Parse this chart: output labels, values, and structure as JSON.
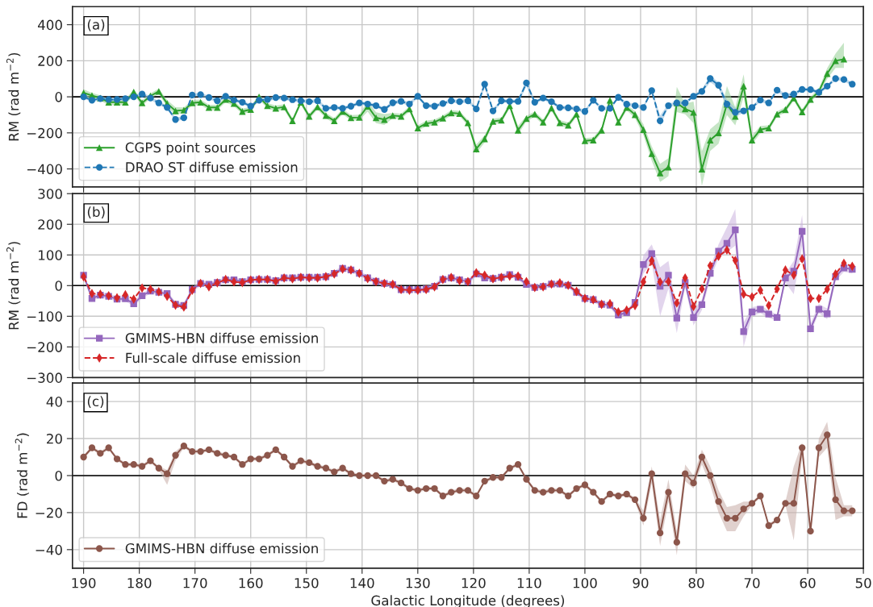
{
  "chart_data": [
    {
      "type": "line",
      "ylabel": "RM (rad m$^{−2}$)",
      "annotations": [
        "(a)"
      ],
      "legend": "lower left",
      "grid": true,
      "tick_labels": "y",
      "xlim": [
        192,
        50
      ],
      "xticks": [
        190,
        180,
        170,
        160,
        150,
        140,
        130,
        120,
        110,
        100,
        90,
        80,
        70,
        60,
        50
      ],
      "ylim": [
        -500,
        500
      ],
      "yticks": [
        {
          "value": -400,
          "label": "−400"
        },
        {
          "value": -200,
          "label": "−200"
        },
        0,
        200,
        400
      ],
      "ref_lines": [
        {
          "axis": "y",
          "value": 0,
          "color": "#000000"
        }
      ],
      "x": [
        190,
        188.5,
        187,
        185.5,
        184,
        182.5,
        181,
        179.5,
        178,
        176.5,
        175,
        173.5,
        172,
        170.5,
        169,
        167.5,
        166,
        164.5,
        163,
        161.5,
        160,
        158.5,
        157,
        155.5,
        154,
        152.5,
        151,
        149.5,
        148,
        146.5,
        145,
        143.5,
        142,
        140.5,
        139,
        137.5,
        136,
        134.5,
        133,
        131.5,
        130,
        128.5,
        127,
        125.5,
        124,
        122.5,
        121,
        119.5,
        118,
        116.5,
        115,
        113.5,
        112,
        110.5,
        109,
        107.5,
        106,
        104.5,
        103,
        101.5,
        100,
        98.5,
        97,
        95.5,
        94,
        92.5,
        91,
        89.5,
        88,
        86.5,
        85,
        83.5,
        82,
        80.5,
        79,
        77.5,
        76,
        74.5,
        73,
        71.5,
        70,
        68.5,
        67,
        65.5,
        64,
        62.5,
        61,
        59.5,
        58,
        56.5,
        55,
        53.5,
        52
      ],
      "series": [
        {
          "name": "CGPS point sources",
          "color": "#2ca02c",
          "marker": "triangle",
          "line_style": "solid",
          "values": [
            22,
            7,
            -7,
            -30,
            -30,
            -30,
            27,
            -34,
            5,
            30,
            -37,
            -78,
            -74,
            -34,
            -30,
            -59,
            -59,
            -15,
            -37,
            -81,
            -70,
            0,
            -49,
            -64,
            -56,
            -133,
            -30,
            -108,
            -56,
            -104,
            -133,
            -81,
            -116,
            -114,
            -52,
            -116,
            -126,
            -104,
            -108,
            -67,
            -173,
            -148,
            -141,
            -118,
            -89,
            -93,
            -144,
            -289,
            -233,
            -136,
            -130,
            -49,
            -185,
            -121,
            -96,
            -141,
            -62,
            -144,
            -158,
            -96,
            -244,
            -240,
            -185,
            -19,
            -141,
            -59,
            -99,
            -182,
            -315,
            -422,
            -390,
            -34,
            -67,
            -86,
            -401,
            -240,
            -200,
            -41,
            -108,
            59,
            -240,
            -182,
            -173,
            -96,
            -71,
            -7,
            -84,
            -15,
            30,
            129,
            200,
            209,
            null
          ],
          "lower": [
            -2,
            -8,
            -22,
            -45,
            -45,
            -45,
            12,
            -49,
            -10,
            15,
            -57,
            -98,
            -89,
            -49,
            -45,
            -74,
            -74,
            -30,
            -52,
            -96,
            -85,
            -15,
            -64,
            -79,
            -71,
            -148,
            -45,
            -123,
            -71,
            -119,
            -148,
            -96,
            -131,
            -129,
            -82,
            -146,
            -156,
            -119,
            -123,
            -82,
            -188,
            -163,
            -156,
            -133,
            -104,
            -108,
            -159,
            -314,
            -253,
            -151,
            -145,
            -64,
            -210,
            -136,
            -111,
            -156,
            -77,
            -159,
            -173,
            -111,
            -259,
            -255,
            -200,
            -34,
            -156,
            -74,
            -119,
            -212,
            -355,
            -472,
            -440,
            -84,
            -97,
            -146,
            -495,
            -300,
            -260,
            -101,
            -158,
            -1,
            -265,
            -202,
            -188,
            -111,
            -86,
            -22,
            -99,
            -30,
            15,
            99,
            160,
            160,
            null
          ],
          "upper": [
            42,
            22,
            8,
            -15,
            -15,
            -15,
            42,
            -19,
            20,
            45,
            -17,
            -58,
            -59,
            -19,
            -15,
            -44,
            -44,
            0,
            -22,
            -66,
            -55,
            15,
            -34,
            -49,
            -41,
            -118,
            -15,
            -93,
            -41,
            -89,
            -118,
            -66,
            -101,
            -99,
            -22,
            -86,
            -96,
            -89,
            -93,
            -52,
            -158,
            -133,
            -126,
            -103,
            -74,
            -78,
            -129,
            -264,
            -213,
            -121,
            -115,
            -34,
            -160,
            -106,
            -81,
            -126,
            -47,
            -129,
            -143,
            -81,
            -229,
            -225,
            -170,
            -4,
            -126,
            -44,
            -79,
            -152,
            -275,
            -372,
            -340,
            55,
            -37,
            -26,
            -301,
            -180,
            -140,
            60,
            -58,
            125,
            -215,
            -162,
            -158,
            -81,
            -56,
            8,
            -69,
            0,
            45,
            159,
            240,
            300,
            null
          ]
        },
        {
          "name": "DRAO ST diffuse emission",
          "color": "#1f77b4",
          "marker": "circle",
          "line_style": "dashed",
          "values": [
            0,
            -19,
            -10,
            -15,
            -15,
            -10,
            0,
            15,
            -7,
            -34,
            -59,
            -126,
            -116,
            10,
            12,
            -4,
            -22,
            3,
            -18,
            -30,
            -52,
            -19,
            -15,
            -4,
            -7,
            -16,
            -22,
            -27,
            -22,
            -64,
            -59,
            -64,
            -52,
            -34,
            -40,
            -49,
            -70,
            -33,
            -25,
            -40,
            3,
            -49,
            -52,
            -37,
            -22,
            -27,
            -22,
            -67,
            70,
            -78,
            -22,
            -25,
            -25,
            77,
            -30,
            -7,
            -27,
            -59,
            -61,
            -67,
            -81,
            -19,
            -64,
            -64,
            -3,
            -41,
            -49,
            -59,
            34,
            -133,
            -49,
            -34,
            -34,
            3,
            30,
            101,
            64,
            -41,
            -86,
            -78,
            -59,
            -18,
            -34,
            37,
            7,
            15,
            41,
            40,
            25,
            59,
            101,
            96,
            70
          ],
          "lower": [
            -10,
            -29,
            -20,
            -25,
            -25,
            -20,
            -10,
            5,
            -17,
            -44,
            -69,
            -136,
            -126,
            0,
            2,
            -14,
            -32,
            -7,
            -28,
            -40,
            -62,
            -29,
            -25,
            -14,
            -17,
            -26,
            -32,
            -37,
            -32,
            -74,
            -69,
            -74,
            -62,
            -44,
            -50,
            -59,
            -80,
            -43,
            -35,
            -50,
            -7,
            -59,
            -62,
            -47,
            -32,
            -37,
            -32,
            -77,
            50,
            -88,
            -32,
            -35,
            -35,
            57,
            -40,
            -17,
            -37,
            -69,
            -71,
            -77,
            -91,
            -29,
            -74,
            -74,
            -13,
            -51,
            -59,
            -69,
            24,
            -163,
            -59,
            -44,
            -44,
            -7,
            20,
            81,
            49,
            -66,
            -111,
            -88,
            -69,
            -28,
            -44,
            27,
            -3,
            5,
            31,
            30,
            15,
            49,
            91,
            86,
            60
          ],
          "upper": [
            10,
            -9,
            0,
            -5,
            -5,
            0,
            10,
            25,
            3,
            -24,
            -49,
            -116,
            -106,
            20,
            22,
            6,
            -12,
            13,
            -8,
            -20,
            -42,
            -9,
            -5,
            6,
            3,
            -6,
            -12,
            -17,
            -12,
            -54,
            -49,
            -54,
            -42,
            -24,
            -30,
            -39,
            -60,
            -23,
            -15,
            -30,
            13,
            -39,
            -42,
            -27,
            -12,
            -17,
            -12,
            -57,
            90,
            -68,
            -12,
            -15,
            -15,
            97,
            -20,
            3,
            -17,
            -49,
            -51,
            -57,
            -71,
            -9,
            -54,
            -54,
            7,
            -31,
            -39,
            -49,
            44,
            -103,
            -39,
            -24,
            -24,
            13,
            40,
            121,
            79,
            -16,
            -61,
            -68,
            -49,
            -8,
            -24,
            47,
            17,
            25,
            51,
            50,
            35,
            69,
            111,
            106,
            80
          ]
        }
      ]
    },
    {
      "type": "line",
      "ylabel": "RM (rad m$^{−2}$)",
      "annotations": [
        "(b)"
      ],
      "legend": "lower left",
      "grid": true,
      "tick_labels": "y",
      "xlim": [
        192,
        50
      ],
      "xticks": [
        190,
        180,
        170,
        160,
        150,
        140,
        130,
        120,
        110,
        100,
        90,
        80,
        70,
        60,
        50
      ],
      "ylim": [
        -300,
        300
      ],
      "yticks": [
        {
          "value": -300,
          "label": "−300"
        },
        {
          "value": -200,
          "label": "−200"
        },
        {
          "value": -100,
          "label": "−100"
        },
        0,
        100,
        200,
        300
      ],
      "ref_lines": [
        {
          "axis": "y",
          "value": 0,
          "color": "#000000"
        }
      ],
      "x": [
        190,
        188.5,
        187,
        185.5,
        184,
        182.5,
        181,
        179.5,
        178,
        176.5,
        175,
        173.5,
        172,
        170.5,
        169,
        167.5,
        166,
        164.5,
        163,
        161.5,
        160,
        158.5,
        157,
        155.5,
        154,
        152.5,
        151,
        149.5,
        148,
        146.5,
        145,
        143.5,
        142,
        140.5,
        139,
        137.5,
        136,
        134.5,
        133,
        131.5,
        130,
        128.5,
        127,
        125.5,
        124,
        122.5,
        121,
        119.5,
        118,
        116.5,
        115,
        113.5,
        112,
        110.5,
        109,
        107.5,
        106,
        104.5,
        103,
        101.5,
        100,
        98.5,
        97,
        95.5,
        94,
        92.5,
        91,
        89.5,
        88,
        86.5,
        85,
        83.5,
        82,
        80.5,
        79,
        77.5,
        76,
        74.5,
        73,
        71.5,
        70,
        68.5,
        67,
        65.5,
        64,
        62.5,
        61,
        59.5,
        58,
        56.5,
        55,
        53.5,
        52
      ],
      "series": [
        {
          "name": "GMIMS-HBN diffuse emission",
          "color": "#9467bd",
          "marker": "square",
          "line_style": "solid",
          "values": [
            34,
            -42,
            -31,
            -35,
            -44,
            -43,
            -59,
            -33,
            -18,
            -22,
            -26,
            -61,
            -65,
            -13,
            7,
            4,
            10,
            19,
            19,
            13,
            19,
            20,
            20,
            16,
            25,
            25,
            27,
            27,
            27,
            29,
            40,
            56,
            51,
            40,
            25,
            14,
            7,
            3,
            -13,
            -13,
            -13,
            -11,
            -2,
            20,
            25,
            19,
            13,
            38,
            25,
            23,
            27,
            36,
            27,
            4,
            -6,
            -3,
            5,
            5,
            1,
            -22,
            -42,
            -46,
            -61,
            -64,
            -96,
            -88,
            -55,
            69,
            104,
            -2,
            34,
            -106,
            10,
            -104,
            -62,
            40,
            112,
            138,
            182,
            -150,
            -86,
            -77,
            -93,
            -104,
            25,
            47,
            177,
            -141,
            -77,
            -92,
            29,
            58,
            53
          ],
          "lower": [
            26,
            -50,
            -39,
            -43,
            -52,
            -51,
            -67,
            -41,
            -26,
            -30,
            -34,
            -69,
            -73,
            -21,
            -1,
            -4,
            2,
            11,
            11,
            5,
            11,
            12,
            12,
            8,
            17,
            17,
            19,
            19,
            19,
            21,
            32,
            48,
            43,
            32,
            17,
            6,
            -1,
            -5,
            -21,
            -21,
            -21,
            -19,
            -10,
            12,
            17,
            11,
            5,
            30,
            17,
            15,
            19,
            28,
            19,
            -4,
            -14,
            -11,
            -3,
            -3,
            -7,
            -30,
            -50,
            -54,
            -69,
            -72,
            -104,
            -96,
            -63,
            39,
            74,
            -100,
            -10,
            -155,
            -5,
            -130,
            -80,
            20,
            90,
            110,
            130,
            -200,
            -100,
            -90,
            -105,
            -115,
            10,
            -28,
            130,
            -155,
            -90,
            -110,
            15,
            45,
            40
          ],
          "upper": [
            42,
            -34,
            -23,
            -27,
            -36,
            -35,
            -51,
            -25,
            -10,
            -14,
            -18,
            -53,
            -57,
            -5,
            15,
            12,
            18,
            27,
            27,
            21,
            27,
            28,
            28,
            24,
            33,
            33,
            35,
            35,
            35,
            37,
            48,
            64,
            59,
            48,
            33,
            22,
            15,
            11,
            -5,
            -5,
            -5,
            -3,
            6,
            28,
            33,
            27,
            21,
            46,
            33,
            31,
            35,
            44,
            35,
            12,
            2,
            5,
            13,
            13,
            9,
            -14,
            -34,
            -38,
            -53,
            -56,
            -88,
            -80,
            -47,
            99,
            134,
            60,
            80,
            -80,
            25,
            -80,
            -45,
            60,
            135,
            190,
            250,
            -120,
            -70,
            -65,
            -80,
            -95,
            40,
            80,
            230,
            -125,
            -60,
            -75,
            45,
            70,
            65
          ]
        },
        {
          "name": "Full-scale diffuse emission",
          "color": "#d62728",
          "marker": "diamond",
          "line_style": "dashed",
          "values": [
            29,
            -26,
            -28,
            -33,
            -40,
            -30,
            -44,
            -8,
            -12,
            -20,
            -35,
            -64,
            -70,
            -15,
            7,
            -4,
            9,
            20,
            12,
            10,
            18,
            20,
            20,
            14,
            25,
            22,
            27,
            25,
            25,
            29,
            38,
            54,
            51,
            40,
            23,
            13,
            7,
            4,
            -13,
            -15,
            -15,
            -13,
            -4,
            20,
            27,
            16,
            13,
            42,
            34,
            22,
            27,
            31,
            31,
            13,
            -6,
            -4,
            5,
            9,
            1,
            -19,
            -42,
            -46,
            -61,
            -59,
            -86,
            -80,
            -65,
            12,
            81,
            12,
            13,
            -57,
            25,
            -68,
            -11,
            65,
            96,
            116,
            82,
            -28,
            -37,
            -15,
            -65,
            -11,
            51,
            34,
            87,
            -42,
            -42,
            -12,
            38,
            73,
            63
          ]
        }
      ]
    },
    {
      "type": "line",
      "ylabel": "FD (rad m$^{−2}$)",
      "xlabel": "Galactic Longitude (degrees)",
      "annotations": [
        "(c)"
      ],
      "legend": "lower left",
      "grid": true,
      "xlim": [
        192,
        50
      ],
      "xticks": [
        190,
        180,
        170,
        160,
        150,
        140,
        130,
        120,
        110,
        100,
        90,
        80,
        70,
        60,
        50
      ],
      "ylim": [
        -50,
        50
      ],
      "yticks": [
        {
          "value": -40,
          "label": "−40"
        },
        {
          "value": -20,
          "label": "−20"
        },
        0,
        20,
        40
      ],
      "ref_lines": [
        {
          "axis": "y",
          "value": 0,
          "color": "#000000"
        }
      ],
      "x": [
        190,
        188.5,
        187,
        185.5,
        184,
        182.5,
        181,
        179.5,
        178,
        176.5,
        175,
        173.5,
        172,
        170.5,
        169,
        167.5,
        166,
        164.5,
        163,
        161.5,
        160,
        158.5,
        157,
        155.5,
        154,
        152.5,
        151,
        149.5,
        148,
        146.5,
        145,
        143.5,
        142,
        140.5,
        139,
        137.5,
        136,
        134.5,
        133,
        131.5,
        130,
        128.5,
        127,
        125.5,
        124,
        122.5,
        121,
        119.5,
        118,
        116.5,
        115,
        113.5,
        112,
        110.5,
        109,
        107.5,
        106,
        104.5,
        103,
        101.5,
        100,
        98.5,
        97,
        95.5,
        94,
        92.5,
        91,
        89.5,
        88,
        86.5,
        85,
        83.5,
        82,
        80.5,
        79,
        77.5,
        76,
        74.5,
        73,
        71.5,
        70,
        68.5,
        67,
        65.5,
        64,
        62.5,
        61,
        59.5,
        58,
        56.5,
        55,
        53.5,
        52
      ],
      "series": [
        {
          "name": "GMIMS-HBN diffuse emission",
          "color": "#8c564b",
          "marker": "circle",
          "line_style": "solid",
          "values": [
            10,
            15,
            12,
            15,
            9,
            6,
            6,
            5,
            8,
            4,
            1,
            11,
            16,
            13,
            13,
            14,
            12,
            11,
            10,
            6,
            9,
            9,
            11,
            14,
            10,
            5,
            8,
            7,
            5,
            4,
            2,
            4,
            1,
            0,
            0,
            0,
            -3,
            -2,
            -4,
            -7,
            -8,
            -7,
            -7,
            -11,
            -9,
            -8,
            -8,
            -11,
            -3,
            -1,
            -1,
            4,
            6,
            -2,
            -8,
            -9,
            -8,
            -8,
            -11,
            -7,
            -5,
            -9,
            -14,
            -10,
            -11,
            -10,
            -13,
            -23,
            1,
            -31,
            -9,
            -36,
            1,
            -4,
            10,
            0,
            -14,
            -23,
            -23,
            -18,
            -15,
            -11,
            -27,
            -24,
            -15,
            -15,
            15,
            -30,
            15,
            22,
            -13,
            -19,
            -19
          ],
          "lower": [
            9,
            14,
            11,
            14,
            8,
            5,
            5,
            4,
            7,
            3,
            -5,
            8,
            15,
            12,
            12,
            13,
            11,
            10,
            9,
            5,
            8,
            8,
            10,
            13,
            9,
            4,
            7,
            6,
            4,
            3,
            1,
            3,
            0,
            -1,
            -1,
            -1,
            -4,
            -3,
            -5,
            -8,
            -9,
            -8,
            -8,
            -12,
            -10,
            -9,
            -9,
            -12,
            -4,
            -2,
            -2,
            3,
            5,
            -3,
            -9,
            -10,
            -9,
            -9,
            -12,
            -8,
            -6,
            -10,
            -15,
            -11,
            -12,
            -11,
            -14,
            -27,
            -4,
            -38,
            -14,
            -43,
            -3,
            -7,
            6,
            -5,
            -20,
            -30,
            -30,
            -22,
            -16,
            -12,
            -28,
            -25,
            -16,
            -35,
            10,
            -32,
            10,
            15,
            -24,
            -22,
            -22
          ],
          "upper": [
            11,
            16,
            13,
            16,
            10,
            7,
            7,
            6,
            9,
            5,
            3,
            13,
            17,
            14,
            14,
            15,
            13,
            12,
            11,
            7,
            10,
            10,
            12,
            15,
            11,
            6,
            9,
            8,
            6,
            5,
            3,
            5,
            2,
            1,
            1,
            1,
            -2,
            -1,
            -3,
            -6,
            -7,
            -6,
            -6,
            -10,
            -8,
            -7,
            -7,
            -10,
            -2,
            0,
            0,
            5,
            7,
            -1,
            -7,
            -8,
            -7,
            -7,
            -10,
            -6,
            -4,
            -8,
            -13,
            -9,
            -10,
            -9,
            -12,
            -19,
            5,
            -24,
            -2,
            -30,
            6,
            0,
            14,
            5,
            -8,
            -17,
            -16,
            -14,
            -14,
            -10,
            -26,
            -23,
            -14,
            5,
            18,
            -27,
            20,
            29,
            -1,
            -16,
            -16
          ]
        }
      ]
    }
  ]
}
